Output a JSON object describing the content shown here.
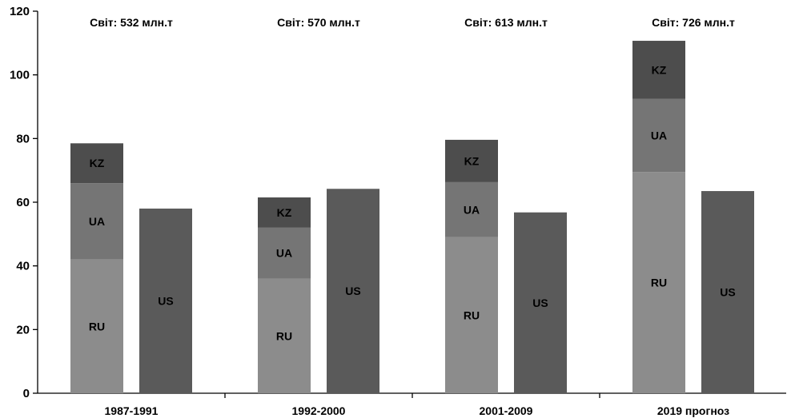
{
  "chart_data": {
    "type": "bar",
    "stacked_with_separate": true,
    "ylim": [
      0,
      120
    ],
    "yticks": [
      0,
      20,
      40,
      60,
      80,
      100,
      120
    ],
    "grid": false,
    "legend": "none",
    "groups": [
      {
        "category": "1987-1991",
        "world_label": "Світ: 532 млн.т",
        "stack": [
          {
            "name": "RU",
            "value": 42
          },
          {
            "name": "UA",
            "value": 24
          },
          {
            "name": "KZ",
            "value": 12.5
          }
        ],
        "us": {
          "name": "US",
          "value": 58
        }
      },
      {
        "category": "1992-2000",
        "world_label": "Світ: 570 млн.т",
        "stack": [
          {
            "name": "RU",
            "value": 36
          },
          {
            "name": "UA",
            "value": 16
          },
          {
            "name": "KZ",
            "value": 9.5
          }
        ],
        "us": {
          "name": "US",
          "value": 64.2
        }
      },
      {
        "category": "2001-2009",
        "world_label": "Світ: 613 млн.т",
        "stack": [
          {
            "name": "RU",
            "value": 49
          },
          {
            "name": "UA",
            "value": 17.3
          },
          {
            "name": "KZ",
            "value": 13.3
          }
        ],
        "us": {
          "name": "US",
          "value": 56.8
        }
      },
      {
        "category": "2019 прогноз",
        "world_label": "Світ: 726 млн.т",
        "stack": [
          {
            "name": "RU",
            "value": 69.5
          },
          {
            "name": "UA",
            "value": 23
          },
          {
            "name": "KZ",
            "value": 18.2
          }
        ],
        "us": {
          "name": "US",
          "value": 63.5
        }
      }
    ],
    "colors": {
      "RU": "#8c8c8c",
      "UA": "#757575",
      "KZ": "#4d4d4d",
      "US": "#5a5a5a"
    }
  }
}
